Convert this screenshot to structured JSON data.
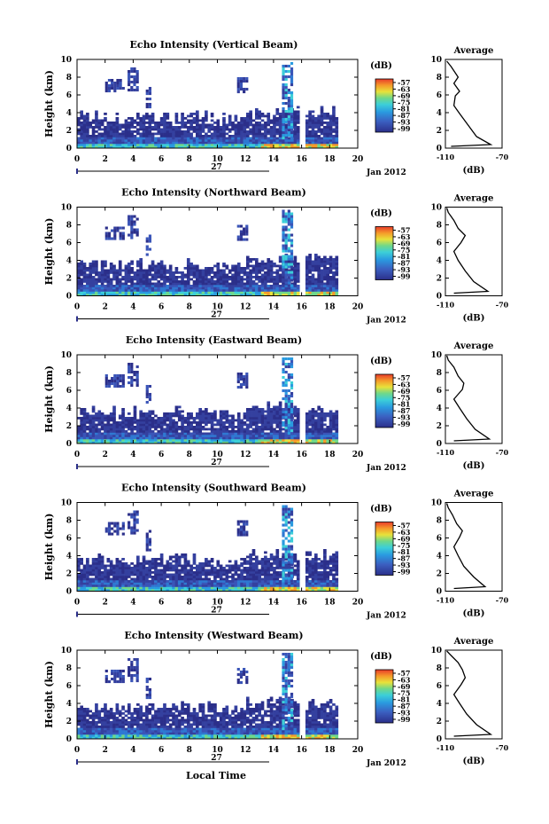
{
  "chart_data": {
    "type": "heatmap",
    "panels": [
      {
        "title": "Echo Intensity (Vertical Beam)",
        "profile": [
          [
            -106,
            0.2
          ],
          [
            -78,
            0.4
          ],
          [
            -88,
            1.3
          ],
          [
            -94,
            2.6
          ],
          [
            -100,
            3.9
          ],
          [
            -104,
            4.8
          ],
          [
            -103,
            5.9
          ],
          [
            -100,
            6.4
          ],
          [
            -104,
            7.3
          ],
          [
            -101,
            8.0
          ],
          [
            -106,
            9.2
          ],
          [
            -109,
            9.8
          ]
        ]
      },
      {
        "title": "Echo Intensity (Northward Beam)",
        "profile": [
          [
            -104,
            0.3
          ],
          [
            -80,
            0.5
          ],
          [
            -90,
            1.6
          ],
          [
            -96,
            2.8
          ],
          [
            -101,
            4.0
          ],
          [
            -104,
            5.0
          ],
          [
            -99,
            6.0
          ],
          [
            -96,
            6.8
          ],
          [
            -101,
            7.6
          ],
          [
            -104,
            8.5
          ],
          [
            -108,
            9.4
          ],
          [
            -109,
            9.9
          ]
        ]
      },
      {
        "title": "Echo Intensity (Eastward Beam)",
        "profile": [
          [
            -104,
            0.3
          ],
          [
            -79,
            0.5
          ],
          [
            -89,
            1.6
          ],
          [
            -95,
            2.8
          ],
          [
            -100,
            4.0
          ],
          [
            -104,
            5.0
          ],
          [
            -98,
            6.1
          ],
          [
            -97,
            6.8
          ],
          [
            -101,
            7.6
          ],
          [
            -104,
            8.6
          ],
          [
            -108,
            9.4
          ],
          [
            -109,
            9.9
          ]
        ]
      },
      {
        "title": "Echo Intensity (Southward Beam)",
        "profile": [
          [
            -104,
            0.3
          ],
          [
            -82,
            0.5
          ],
          [
            -90,
            1.6
          ],
          [
            -97,
            2.8
          ],
          [
            -101,
            4.0
          ],
          [
            -104,
            5.0
          ],
          [
            -100,
            6.1
          ],
          [
            -98,
            6.8
          ],
          [
            -102,
            7.6
          ],
          [
            -105,
            8.6
          ],
          [
            -108,
            9.4
          ],
          [
            -109,
            9.9
          ]
        ]
      },
      {
        "title": "Echo Intensity (Westward Beam)",
        "profile": [
          [
            -104,
            0.3
          ],
          [
            -78,
            0.5
          ],
          [
            -88,
            1.6
          ],
          [
            -95,
            2.8
          ],
          [
            -100,
            4.0
          ],
          [
            -104,
            5.0
          ],
          [
            -99,
            6.1
          ],
          [
            -96,
            6.9
          ],
          [
            -98,
            7.8
          ],
          [
            -101,
            8.6
          ],
          [
            -106,
            9.4
          ],
          [
            -109,
            9.9
          ]
        ]
      }
    ],
    "xlim": [
      0,
      20
    ],
    "x_ticks": [
      "0",
      "2",
      "4",
      "6",
      "8",
      "10",
      "12",
      "14",
      "16",
      "18",
      "20"
    ],
    "ylim": [
      0,
      10
    ],
    "y_ticks": [
      "0",
      "2",
      "4",
      "6",
      "8",
      "10"
    ],
    "ylabel": "Height (km)",
    "date_day": "27",
    "date_label": "Jan 2012",
    "xlabel": "Local Time",
    "colorbar": {
      "unit": "(dB)",
      "ticks": [
        "-57",
        "-63",
        "-69",
        "-75",
        "-81",
        "-87",
        "-93",
        "-99"
      ]
    },
    "profile_title": "Average",
    "profile_xlim": [
      -110,
      -70
    ],
    "profile_x_ticks": [
      "-110",
      "-70"
    ],
    "profile_xlabel": "(dB)"
  }
}
